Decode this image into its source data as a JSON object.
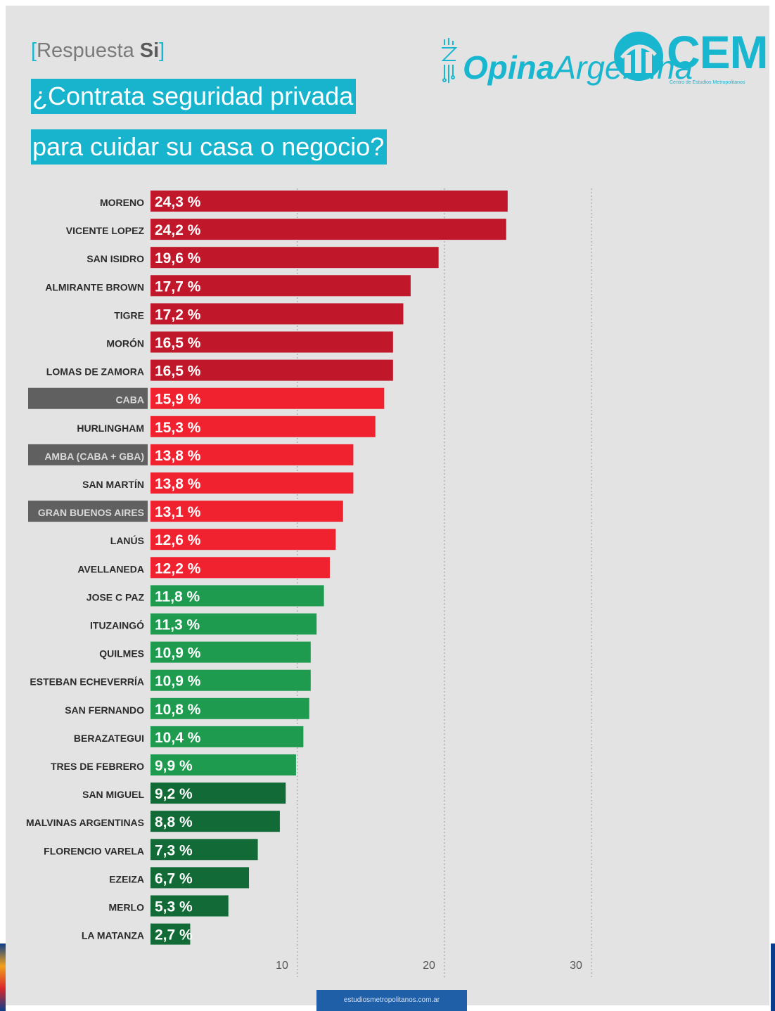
{
  "header": {
    "subtitle_bracket_open": "[",
    "subtitle_prefix": "Respuesta ",
    "subtitle_bold": "Si",
    "subtitle_bracket_close": "]",
    "title_line_1": "¿Contrata seguridad privada",
    "title_line_2": "para cuidar su casa o negocio?"
  },
  "logos": {
    "opina_bold": "Opina",
    "opina_rest": "Argentina",
    "cem": "CEM",
    "cem_subtitle": "Centro de Estudios Metropolitanos"
  },
  "footer": {
    "url": "estudiosmetropolitanos.com.ar"
  },
  "colors": {
    "dark_red": "#c0182a",
    "red": "#f0222f",
    "green": "#1f9b50",
    "dark_green": "#126a36",
    "highlight_label_bg": "#606060",
    "accent": "#18b3cc"
  },
  "chart_data": {
    "type": "bar",
    "orientation": "horizontal",
    "value_suffix": " %",
    "xlim": [
      0,
      30
    ],
    "xticks": [
      10,
      20,
      30
    ],
    "grid": "vertical dotted lines at ticks",
    "categories": [
      "MORENO",
      "VICENTE LOPEZ",
      "SAN ISIDRO",
      "ALMIRANTE BROWN",
      "TIGRE",
      "MORÓN",
      "LOMAS DE ZAMORA",
      "CABA",
      "HURLINGHAM",
      "AMBA (CABA + GBA)",
      "SAN MARTÍN",
      "GRAN BUENOS AIRES",
      "LANÚS",
      "AVELLANEDA",
      "JOSE C PAZ",
      "ITUZAINGÓ",
      "QUILMES",
      "ESTEBAN ECHEVERRÍA",
      "SAN FERNANDO",
      "BERAZATEGUI",
      "TRES DE FEBRERO",
      "SAN MIGUEL",
      "MALVINAS ARGENTINAS",
      "FLORENCIO VARELA",
      "EZEIZA",
      "MERLO",
      "LA MATANZA"
    ],
    "values": [
      24.3,
      24.2,
      19.6,
      17.7,
      17.2,
      16.5,
      16.5,
      15.9,
      15.3,
      13.8,
      13.8,
      13.1,
      12.6,
      12.2,
      11.8,
      11.3,
      10.9,
      10.9,
      10.8,
      10.4,
      9.9,
      9.2,
      8.8,
      7.3,
      6.7,
      5.3,
      2.7
    ],
    "value_labels": [
      "24,3",
      "24,2",
      "19,6",
      "17,7",
      "17,2",
      "16,5",
      "16,5",
      "15,9",
      "15,3",
      "13,8",
      "13,8",
      "13,1",
      "12,6",
      "12,2",
      "11,8",
      "11,3",
      "10,9",
      "10,9",
      "10,8",
      "10,4",
      "9,9",
      "9,2",
      "8,8",
      "7,3",
      "6,7",
      "5,3",
      "2,7"
    ],
    "bar_color_groups": [
      "dark_red",
      "dark_red",
      "dark_red",
      "dark_red",
      "dark_red",
      "dark_red",
      "dark_red",
      "red",
      "red",
      "red",
      "red",
      "red",
      "red",
      "red",
      "green",
      "green",
      "green",
      "green",
      "green",
      "green",
      "green",
      "dark_green",
      "dark_green",
      "dark_green",
      "dark_green",
      "dark_green",
      "dark_green"
    ],
    "highlighted_categories": [
      "CABA",
      "AMBA (CABA + GBA)",
      "GRAN BUENOS AIRES"
    ]
  }
}
